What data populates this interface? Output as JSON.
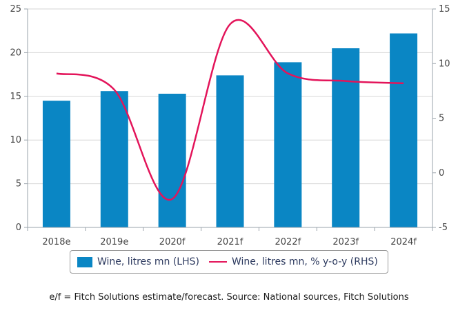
{
  "chart_data": {
    "type": "bar",
    "categories": [
      "2018e",
      "2019e",
      "2020f",
      "2021f",
      "2022f",
      "2023f",
      "2024f"
    ],
    "series": [
      {
        "name": "Wine, litres mn (LHS)",
        "type": "bar",
        "axis": "left",
        "values": [
          14.5,
          15.6,
          15.3,
          17.4,
          18.9,
          20.5,
          22.2
        ]
      },
      {
        "name": "Wine, litres mn, % y-o-y (RHS)",
        "type": "line",
        "axis": "right",
        "values": [
          9.1,
          7.6,
          -2.4,
          13.6,
          9.1,
          8.4,
          8.2
        ]
      }
    ],
    "y_left": {
      "range": [
        0,
        25
      ],
      "ticks": [
        "0",
        "5",
        "10",
        "15",
        "20",
        "25"
      ]
    },
    "y_right": {
      "range": [
        -5,
        15
      ],
      "ticks": [
        "-5",
        "0",
        "5",
        "10",
        "15"
      ]
    },
    "grid": "horizontal",
    "legend_position": "bottom",
    "colors": {
      "bar": "#0a86c4",
      "line": "#e3145a",
      "grid": "#d6d6d6",
      "axis": "#9aa3ab"
    }
  },
  "footnote": "e/f = Fitch Solutions estimate/forecast. Source: National sources, Fitch Solutions"
}
